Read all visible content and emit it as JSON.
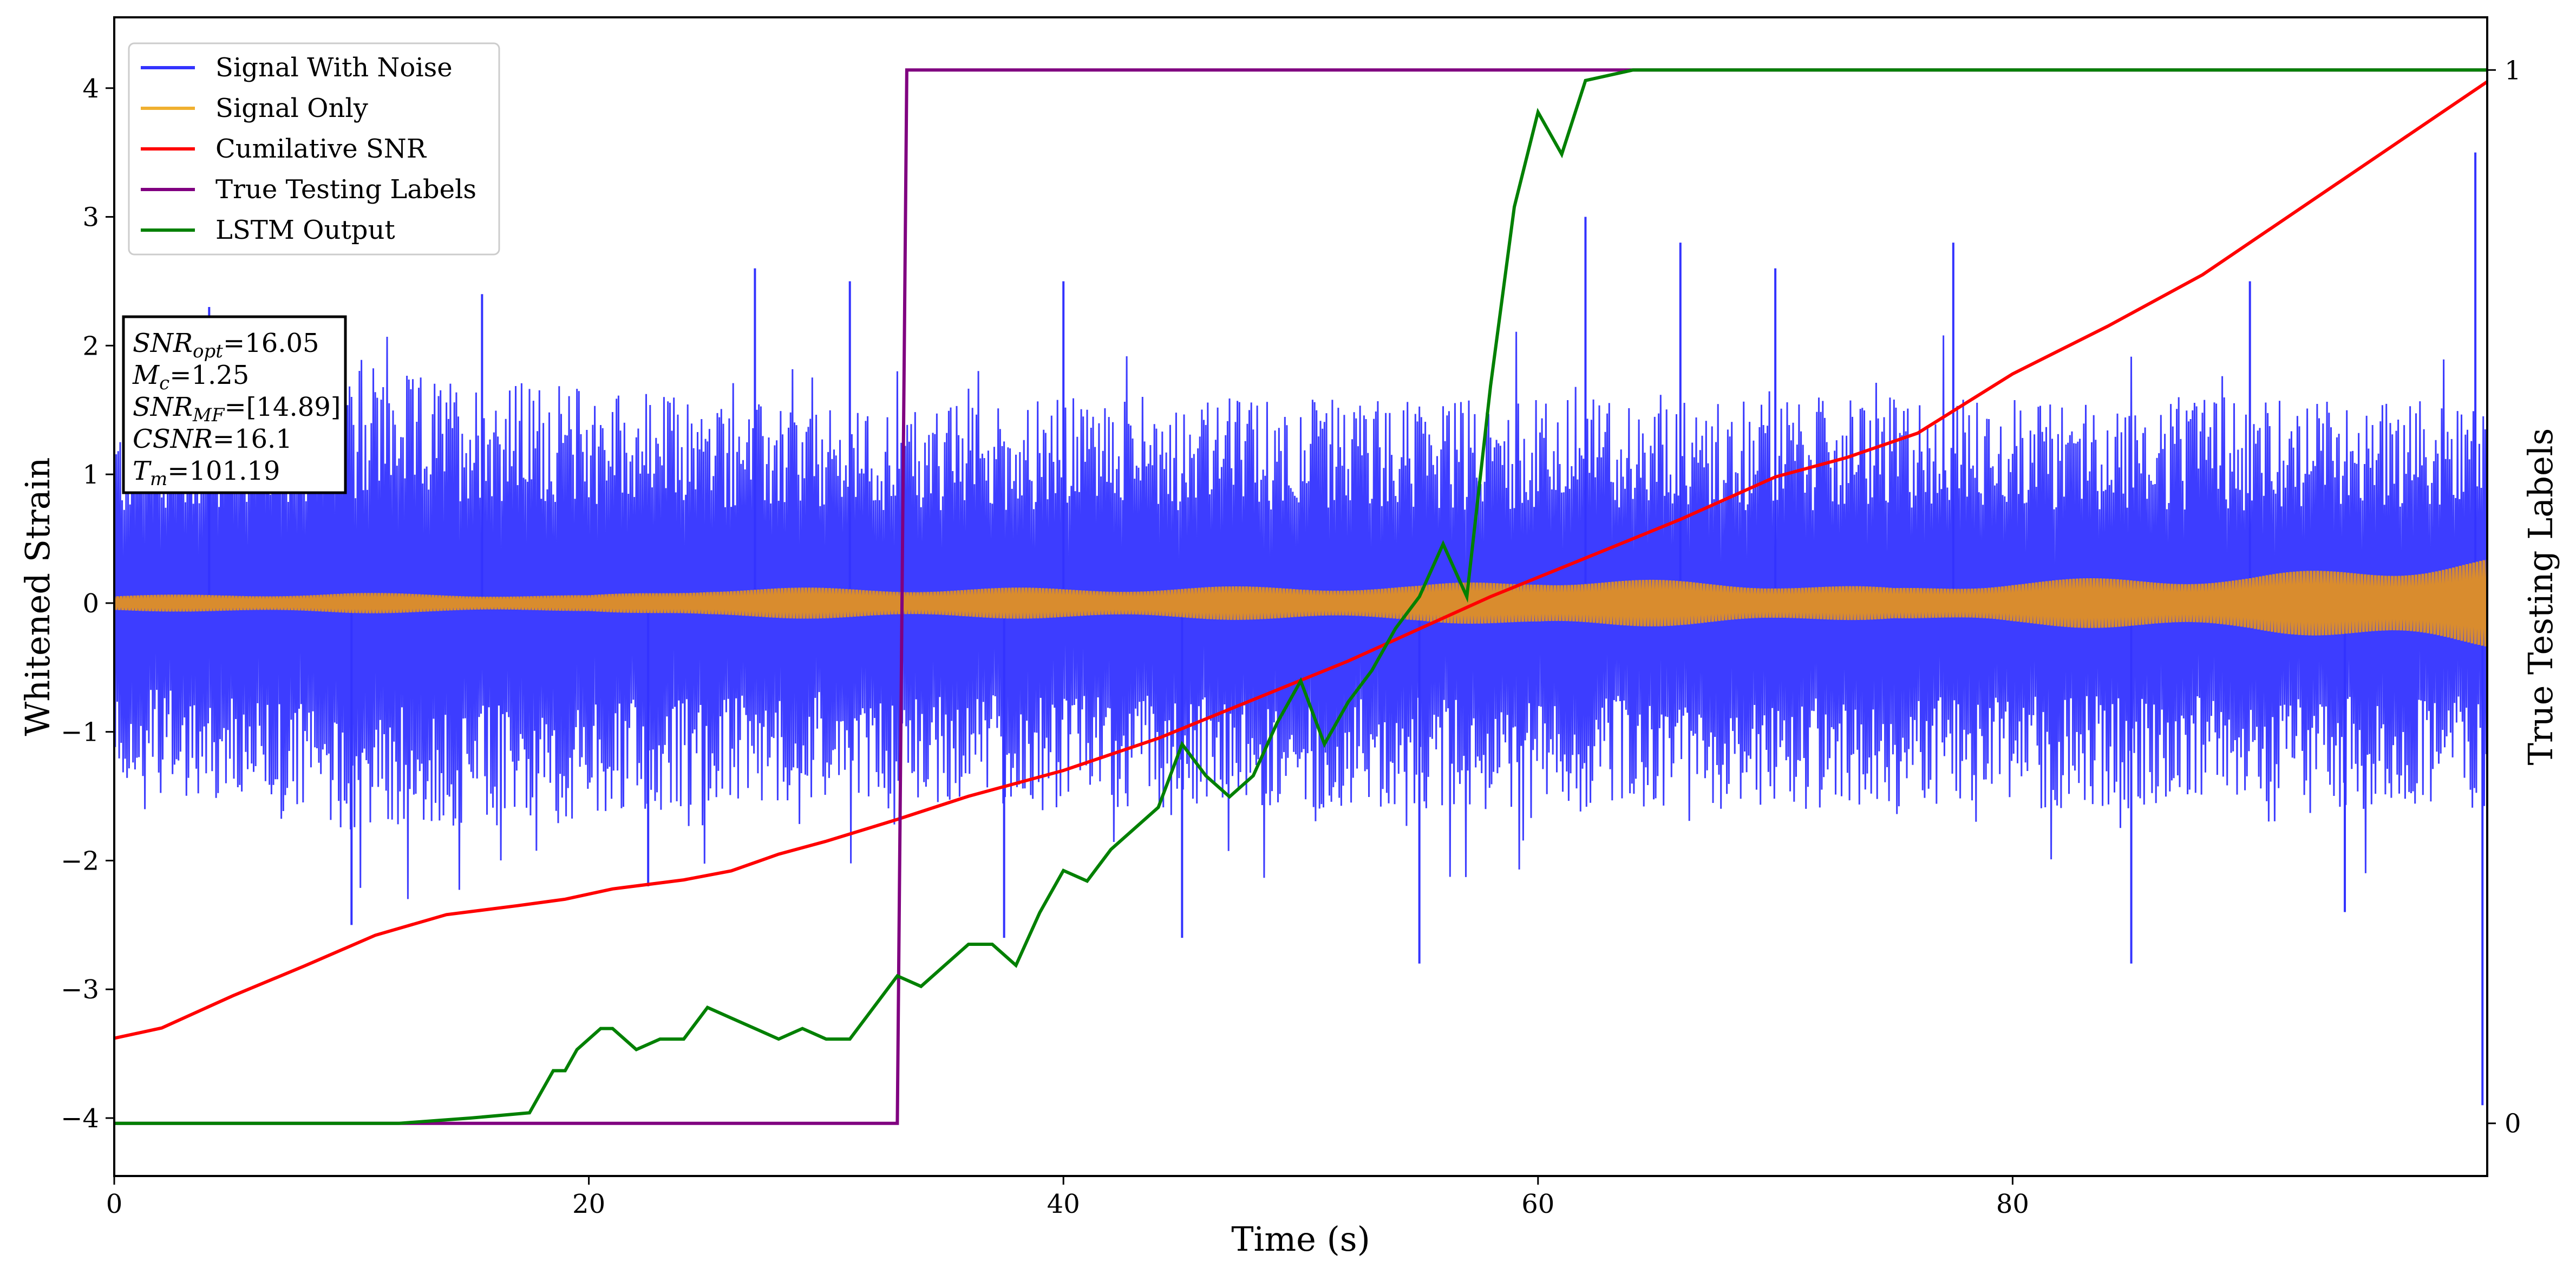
{
  "chart_data": {
    "type": "line",
    "xlabel": "Time (s)",
    "ylabel": "Whitened Strain",
    "y2label": "True Testing Labels",
    "xlim": [
      0,
      100
    ],
    "ylim": [
      -4.45,
      4.55
    ],
    "y2lim": [
      -0.05,
      1.05
    ],
    "x_ticks": [
      0,
      20,
      40,
      60,
      80
    ],
    "y_ticks": [
      -4,
      -3,
      -2,
      -1,
      0,
      1,
      2,
      3,
      4
    ],
    "y2_ticks": [
      0,
      1
    ],
    "grid": false,
    "legend_position": "top-left",
    "series": [
      {
        "name": "Signal With Noise",
        "axis": "left",
        "color": "#3333ff",
        "style": "dense noise centered at 0",
        "upper_envelope": [
          [
            0,
            1.4
          ],
          [
            10,
            1.8
          ],
          [
            20,
            1.7
          ],
          [
            30,
            1.5
          ],
          [
            40,
            1.6
          ],
          [
            50,
            1.6
          ],
          [
            60,
            1.6
          ],
          [
            70,
            1.6
          ],
          [
            80,
            1.6
          ],
          [
            90,
            1.6
          ],
          [
            100,
            1.6
          ]
        ],
        "lower_envelope": [
          [
            0,
            -1.4
          ],
          [
            10,
            -1.8
          ],
          [
            20,
            -1.7
          ],
          [
            30,
            -1.5
          ],
          [
            40,
            -1.6
          ],
          [
            50,
            -1.6
          ],
          [
            60,
            -1.6
          ],
          [
            70,
            -1.6
          ],
          [
            80,
            -1.6
          ],
          [
            90,
            -1.6
          ],
          [
            100,
            -1.6
          ]
        ],
        "peaks": [
          [
            4.0,
            2.3
          ],
          [
            10,
            -2.5
          ],
          [
            15.5,
            2.4
          ],
          [
            22.5,
            -2.2
          ],
          [
            27,
            2.6
          ],
          [
            31,
            2.5
          ],
          [
            37.5,
            -2.6
          ],
          [
            40,
            2.5
          ],
          [
            45,
            -2.6
          ],
          [
            55,
            -2.8
          ],
          [
            62,
            3.0
          ],
          [
            66,
            2.8
          ],
          [
            70,
            2.6
          ],
          [
            77.5,
            2.8
          ],
          [
            85,
            -2.8
          ],
          [
            90,
            2.5
          ],
          [
            94,
            -2.4
          ],
          [
            99.5,
            3.5
          ],
          [
            99.8,
            -3.9
          ]
        ]
      },
      {
        "name": "Signal Only",
        "axis": "left",
        "color": "#f0b030",
        "style": "oscillation band centered at 0",
        "amplitude": [
          [
            0,
            0.06
          ],
          [
            10,
            0.08
          ],
          [
            20,
            0.06
          ],
          [
            25,
            0.12
          ],
          [
            40,
            0.12
          ],
          [
            55,
            0.14
          ],
          [
            60,
            0.2
          ],
          [
            70,
            0.16
          ],
          [
            75,
            0.12
          ],
          [
            80,
            0.18
          ],
          [
            90,
            0.22
          ],
          [
            100,
            0.35
          ]
        ]
      },
      {
        "name": "Cumilative SNR",
        "axis": "left",
        "color": "#ff0000",
        "x": [
          0,
          2,
          5,
          8,
          11,
          14,
          17,
          19,
          21,
          24,
          26,
          28,
          30,
          33,
          36,
          40,
          44,
          48,
          52,
          55,
          58,
          62,
          66,
          70,
          73,
          76,
          80,
          84,
          88,
          92,
          96,
          100
        ],
        "values": [
          -3.38,
          -3.3,
          -3.05,
          -2.82,
          -2.58,
          -2.42,
          -2.35,
          -2.3,
          -2.22,
          -2.15,
          -2.08,
          -1.95,
          -1.85,
          -1.68,
          -1.5,
          -1.3,
          -1.05,
          -0.75,
          -0.45,
          -0.2,
          0.05,
          0.35,
          0.65,
          0.98,
          1.13,
          1.32,
          1.78,
          2.15,
          2.55,
          3.05,
          3.55,
          4.05
        ]
      },
      {
        "name": "True Testing Labels",
        "axis": "right",
        "color": "#800080",
        "x": [
          0,
          33.0,
          33.4,
          100
        ],
        "values": [
          0,
          0,
          1,
          1
        ]
      },
      {
        "name": "LSTM Output",
        "axis": "right",
        "color": "#008000",
        "x": [
          0,
          12,
          15,
          17.5,
          18.5,
          19,
          19.5,
          20.5,
          21,
          22,
          23,
          24,
          25,
          26,
          27,
          28,
          29,
          30,
          31,
          32,
          33,
          34,
          35,
          36,
          37,
          38,
          39,
          40,
          41,
          42,
          43,
          44,
          45,
          46,
          47,
          48,
          49,
          50,
          51,
          52,
          53,
          54,
          55,
          56,
          57,
          57.5,
          58,
          59,
          60,
          61,
          62,
          64,
          66,
          100
        ],
        "values": [
          0,
          0,
          0.005,
          0.01,
          0.05,
          0.05,
          0.07,
          0.09,
          0.09,
          0.07,
          0.08,
          0.08,
          0.11,
          0.1,
          0.09,
          0.08,
          0.09,
          0.08,
          0.08,
          0.11,
          0.14,
          0.13,
          0.15,
          0.17,
          0.17,
          0.15,
          0.2,
          0.24,
          0.23,
          0.26,
          0.28,
          0.3,
          0.36,
          0.33,
          0.31,
          0.33,
          0.38,
          0.42,
          0.36,
          0.4,
          0.43,
          0.47,
          0.5,
          0.55,
          0.5,
          0.6,
          0.7,
          0.87,
          0.96,
          0.92,
          0.99,
          1.0,
          1.0,
          1.0
        ]
      }
    ],
    "annotation": [
      {
        "main": "SNR",
        "sub": "opt",
        "tail": "=16.05"
      },
      {
        "main": "M",
        "sub": "c",
        "tail": "=1.25"
      },
      {
        "main": "SNR",
        "sub": "MF",
        "tail": "=[14.89]"
      },
      {
        "main": "CSNR",
        "sub": "",
        "tail": "=16.1"
      },
      {
        "main": "T",
        "sub": "m",
        "tail": "=101.19"
      }
    ]
  }
}
